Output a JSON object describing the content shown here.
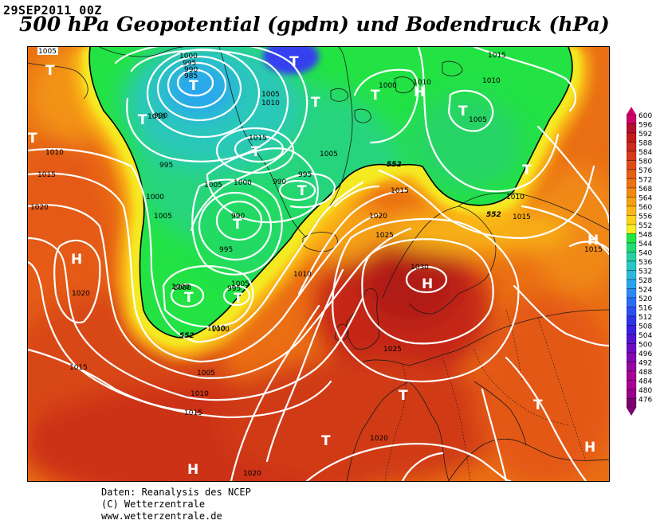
{
  "header": {
    "datestamp": "29SEP2011 00Z",
    "title": "500 hPa Geopotential (gpdm) und Bodendruck (hPa)"
  },
  "credits": {
    "line1": "Daten: Reanalysis des NCEP",
    "line2": "(C) Wetterzentrale",
    "line3": "www.wetterzentrale.de"
  },
  "legend": {
    "levels": [
      "600",
      "596",
      "592",
      "588",
      "584",
      "580",
      "576",
      "572",
      "568",
      "564",
      "560",
      "556",
      "552",
      "548",
      "544",
      "540",
      "536",
      "532",
      "528",
      "524",
      "520",
      "516",
      "512",
      "508",
      "504",
      "500",
      "496",
      "492",
      "488",
      "484",
      "480",
      "476"
    ],
    "colors": [
      "#cc0066",
      "#b30f2a",
      "#c21a1a",
      "#cc2a1a",
      "#d63a1a",
      "#de4c16",
      "#e45e14",
      "#ec7212",
      "#f28a12",
      "#f6a014",
      "#fbb816",
      "#fad21a",
      "#f4ee22",
      "#20e640",
      "#22dc72",
      "#26d0a0",
      "#2ac6c4",
      "#2cb8dc",
      "#2ca4ec",
      "#2c88f4",
      "#2c6cf4",
      "#2c50f0",
      "#2c34ea",
      "#3a20e0",
      "#5014d2",
      "#6a0cc2",
      "#8208b2",
      "#9606a2",
      "#a60494",
      "#a80296",
      "#980288",
      "#7c0070"
    ]
  },
  "map": {
    "highs_lows": [
      "T",
      "T",
      "T",
      "T",
      "T",
      "T",
      "T",
      "T",
      "T",
      "T",
      "T",
      "H",
      "H",
      "H",
      "H",
      "H",
      "T",
      "T",
      "T",
      "T",
      "T",
      "H",
      "T"
    ],
    "isobar_labels": [
      "1005",
      "1000",
      "995",
      "990",
      "985",
      "990",
      "995",
      "1000",
      "1005",
      "1010",
      "1015",
      "1010",
      "1010",
      "1015",
      "1020",
      "1000",
      "1005",
      "1005",
      "1010",
      "1015",
      "1010",
      "1010",
      "1015",
      "1015",
      "1005",
      "1000",
      "995",
      "990",
      "990",
      "1005",
      "995",
      "1000",
      "1005",
      "1010",
      "1015",
      "1020",
      "1025",
      "1030",
      "1025",
      "1005",
      "1010",
      "1015",
      "1015",
      "1020",
      "1020",
      "1020",
      "1010",
      "1000",
      "995",
      "1000"
    ],
    "contour_labels": [
      "552",
      "552",
      "552"
    ]
  }
}
